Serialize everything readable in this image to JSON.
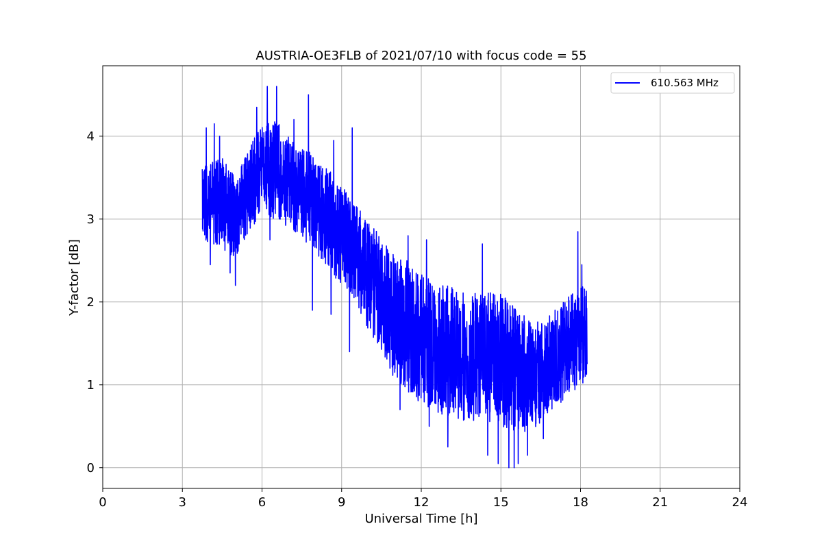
{
  "chart_data": {
    "type": "line",
    "title": "AUSTRIA-OE3FLB of 2021/07/10 with focus code = 55",
    "xlabel": "Universal Time [h]",
    "ylabel": "Y-factor [dB]",
    "xlim": [
      0,
      24
    ],
    "ylim": [
      -0.25,
      4.85
    ],
    "xticks": [
      0,
      3,
      6,
      9,
      12,
      15,
      18,
      21,
      24
    ],
    "yticks": [
      0,
      1,
      2,
      3,
      4
    ],
    "grid": true,
    "legend_position": "top-right",
    "series": [
      {
        "name": "610.563 MHz",
        "color": "#0000ff",
        "x_start": 3.75,
        "x_end": 18.25,
        "trend_x": [
          3.75,
          4.5,
          5.0,
          5.5,
          6.0,
          6.5,
          7.0,
          7.5,
          8.0,
          8.5,
          9.0,
          9.5,
          10.0,
          10.5,
          11.0,
          11.5,
          12.0,
          13.0,
          14.0,
          15.0,
          15.5,
          16.0,
          16.5,
          17.0,
          17.5,
          18.0,
          18.25
        ],
        "trend_y": [
          3.2,
          3.2,
          3.0,
          3.35,
          3.6,
          3.6,
          3.45,
          3.3,
          3.2,
          3.0,
          2.8,
          2.6,
          2.3,
          2.1,
          1.8,
          1.7,
          1.55,
          1.4,
          1.35,
          1.3,
          1.2,
          1.1,
          1.15,
          1.3,
          1.45,
          1.6,
          1.6
        ],
        "spread": [
          0.45,
          0.55,
          0.5,
          0.5,
          0.55,
          0.6,
          0.55,
          0.55,
          0.6,
          0.6,
          0.6,
          0.6,
          0.65,
          0.7,
          0.75,
          0.8,
          0.8,
          0.8,
          0.8,
          0.8,
          0.75,
          0.7,
          0.6,
          0.6,
          0.6,
          0.6,
          0.55
        ],
        "peak_x": [
          3.9,
          4.2,
          4.4,
          5.8,
          6.2,
          6.55,
          7.2,
          7.75,
          8.7,
          9.4,
          11.5,
          12.2,
          14.3,
          17.9,
          18.05
        ],
        "peak_y": [
          4.1,
          4.15,
          4.0,
          4.35,
          4.6,
          4.6,
          4.2,
          4.5,
          3.95,
          4.1,
          2.8,
          2.75,
          2.7,
          2.85,
          2.45
        ],
        "dip_x": [
          4.05,
          4.8,
          5.0,
          6.3,
          7.9,
          8.6,
          9.3,
          10.4,
          11.2,
          12.3,
          13.0,
          14.5,
          14.9,
          15.3,
          15.5,
          15.65,
          16.0,
          16.6
        ],
        "dip_y": [
          2.45,
          2.35,
          2.2,
          2.75,
          1.9,
          1.85,
          1.4,
          1.55,
          0.7,
          0.5,
          0.25,
          0.15,
          0.05,
          0.0,
          0.0,
          0.05,
          0.15,
          0.35
        ]
      }
    ]
  }
}
